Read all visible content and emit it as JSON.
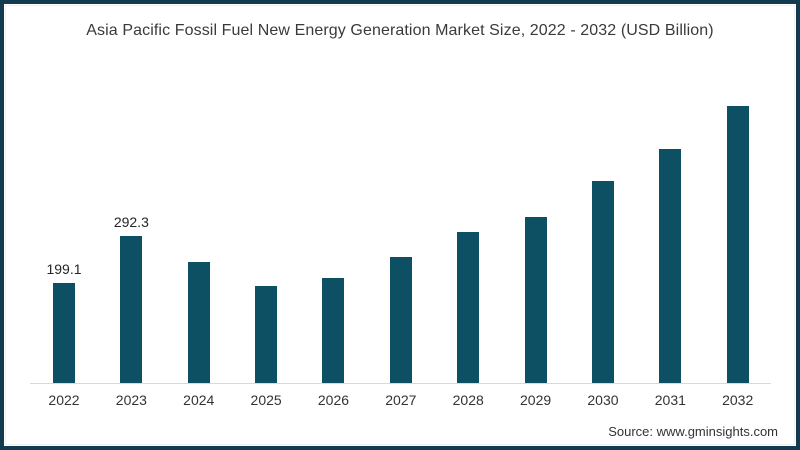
{
  "chart_data": {
    "type": "bar",
    "title": "Asia Pacific Fossil Fuel New Energy Generation Market Size, 2022 - 2032 (USD Billion)",
    "categories": [
      "2022",
      "2023",
      "2024",
      "2025",
      "2026",
      "2027",
      "2028",
      "2029",
      "2030",
      "2031",
      "2032"
    ],
    "values": [
      199.1,
      292.3,
      241,
      193,
      209,
      251,
      301,
      330,
      402,
      466,
      551
    ],
    "data_labels": [
      "199.1",
      "292.3",
      "",
      "",
      "",
      "",
      "",
      "",
      "",
      "",
      ""
    ],
    "xlabel": "",
    "ylabel": "",
    "ylim": [
      0,
      625
    ],
    "grid": false,
    "legend": false,
    "bar_color": "#0e5063",
    "axis_line_color": "#d9d9d9"
  },
  "frame": {
    "border_color": "#143a50"
  },
  "footer": {
    "source": "Source: www.gminsights.com"
  }
}
